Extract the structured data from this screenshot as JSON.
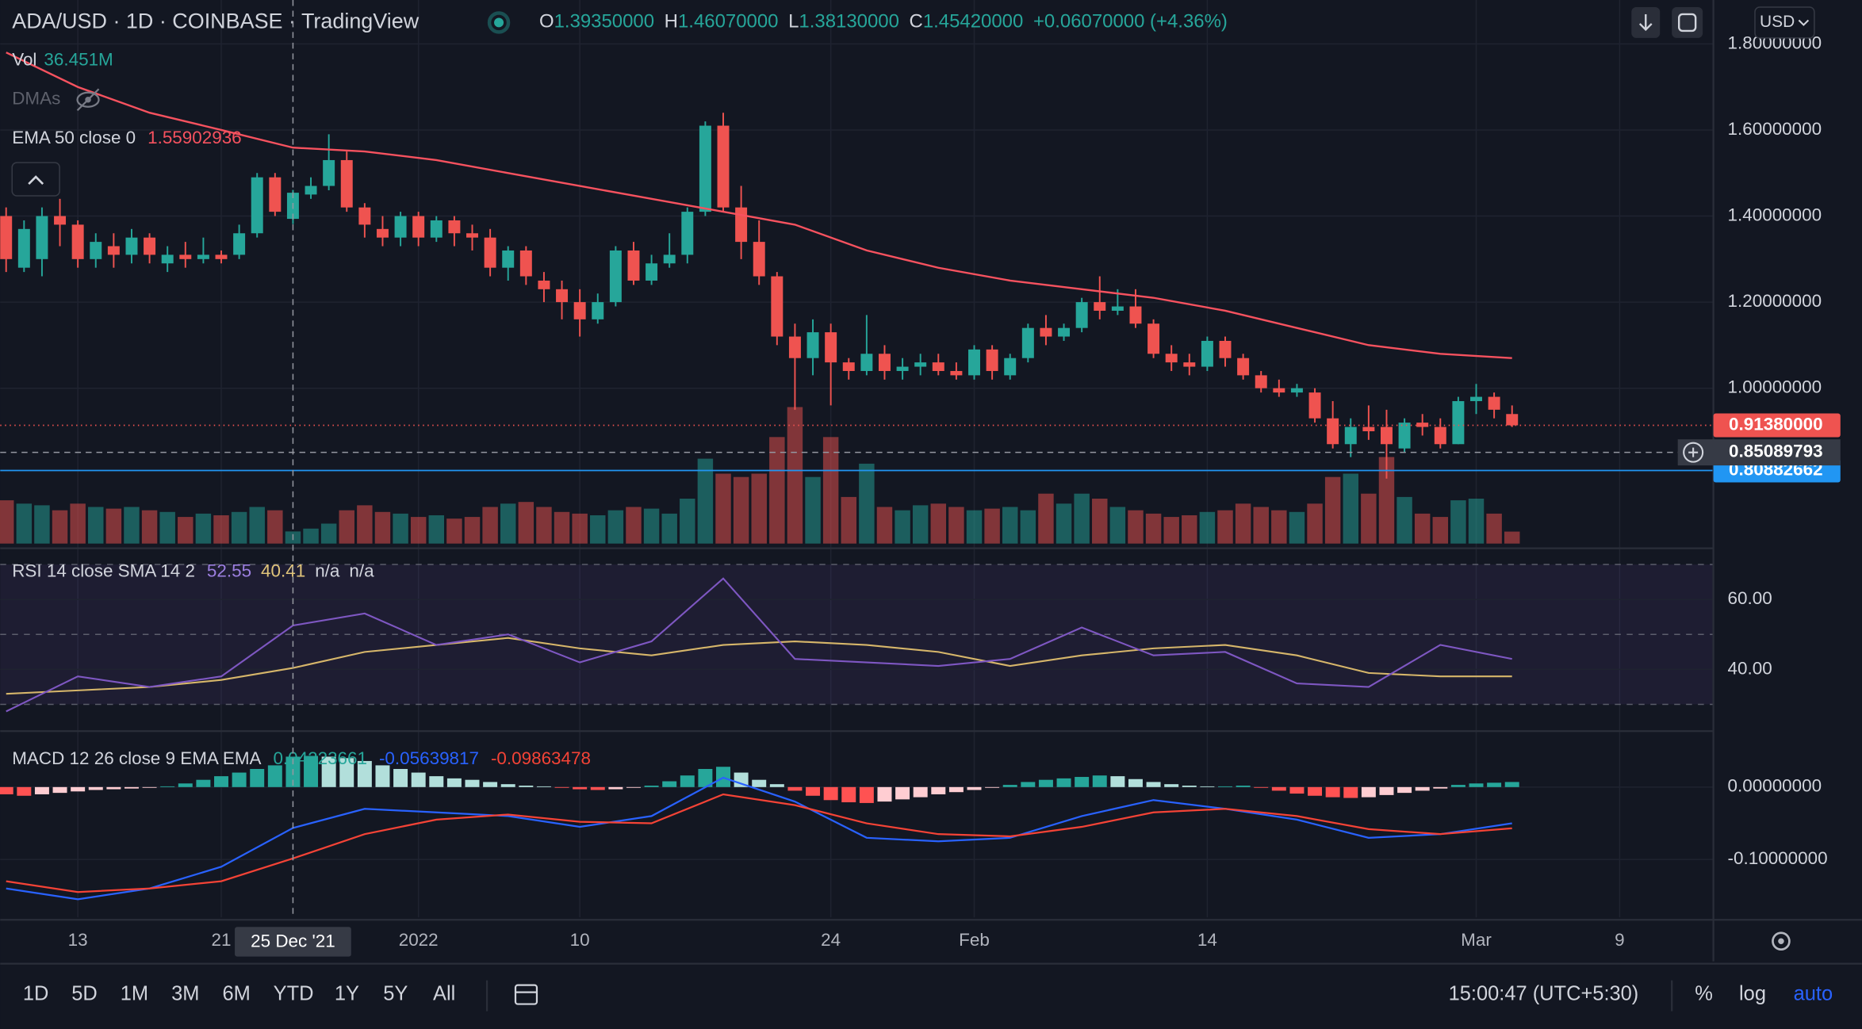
{
  "header": {
    "title": "ADA/USD · 1D · COINBASE · TradingView",
    "ohlc": [
      {
        "key": "O",
        "value": "1.39350000"
      },
      {
        "key": "H",
        "value": "1.46070000"
      },
      {
        "key": "L",
        "value": "1.38130000"
      },
      {
        "key": "C",
        "value": "1.45420000"
      }
    ],
    "change": "+0.06070000 (+4.36%)",
    "currency": "USD"
  },
  "chart_data": [
    {
      "type": "candlestick",
      "up_color": "#26a69a",
      "down_color": "#ef5350",
      "open": [
        1.4,
        1.28,
        1.3,
        1.4,
        1.38,
        1.3,
        1.33,
        1.31,
        1.35,
        1.29,
        1.31,
        1.3,
        1.31,
        1.31,
        1.36,
        1.49,
        1.3935,
        1.45,
        1.47,
        1.53,
        1.42,
        1.37,
        1.35,
        1.4,
        1.35,
        1.39,
        1.36,
        1.35,
        1.28,
        1.32,
        1.25,
        1.23,
        1.2,
        1.16,
        1.2,
        1.32,
        1.25,
        1.29,
        1.31,
        1.41,
        1.61,
        1.42,
        1.34,
        1.26,
        1.12,
        1.07,
        1.13,
        1.06,
        1.04,
        1.08,
        1.04,
        1.05,
        1.06,
        1.04,
        1.03,
        1.09,
        1.03,
        1.07,
        1.14,
        1.12,
        1.14,
        1.2,
        1.18,
        1.19,
        1.15,
        1.08,
        1.06,
        1.05,
        1.11,
        1.07,
        1.03,
        1.0,
        0.99,
        0.99,
        0.93,
        0.87,
        0.91,
        0.91,
        0.86,
        0.92,
        0.91,
        0.87,
        0.97,
        0.98,
        0.94
      ],
      "high": [
        1.42,
        1.39,
        1.42,
        1.44,
        1.39,
        1.36,
        1.36,
        1.37,
        1.36,
        1.33,
        1.34,
        1.35,
        1.32,
        1.38,
        1.5,
        1.5,
        1.4607,
        1.49,
        1.59,
        1.55,
        1.43,
        1.4,
        1.41,
        1.41,
        1.4,
        1.4,
        1.38,
        1.37,
        1.33,
        1.33,
        1.27,
        1.25,
        1.23,
        1.22,
        1.33,
        1.34,
        1.31,
        1.36,
        1.42,
        1.62,
        1.64,
        1.47,
        1.39,
        1.27,
        1.15,
        1.16,
        1.15,
        1.07,
        1.17,
        1.1,
        1.07,
        1.08,
        1.08,
        1.06,
        1.1,
        1.1,
        1.08,
        1.15,
        1.17,
        1.15,
        1.21,
        1.26,
        1.23,
        1.23,
        1.16,
        1.1,
        1.08,
        1.12,
        1.12,
        1.08,
        1.04,
        1.02,
        1.01,
        1.0,
        0.97,
        0.93,
        0.96,
        0.95,
        0.93,
        0.94,
        0.93,
        0.98,
        1.01,
        0.99,
        0.96
      ],
      "low": [
        1.27,
        1.27,
        1.26,
        1.33,
        1.28,
        1.28,
        1.28,
        1.29,
        1.29,
        1.27,
        1.28,
        1.29,
        1.29,
        1.3,
        1.35,
        1.4,
        1.3813,
        1.44,
        1.46,
        1.41,
        1.35,
        1.33,
        1.33,
        1.33,
        1.34,
        1.33,
        1.32,
        1.26,
        1.25,
        1.24,
        1.2,
        1.16,
        1.12,
        1.15,
        1.19,
        1.24,
        1.24,
        1.28,
        1.29,
        1.4,
        1.41,
        1.3,
        1.24,
        1.1,
        0.95,
        1.03,
        0.96,
        1.02,
        1.03,
        1.02,
        1.02,
        1.03,
        1.03,
        1.02,
        1.02,
        1.02,
        1.02,
        1.06,
        1.1,
        1.11,
        1.13,
        1.16,
        1.17,
        1.14,
        1.07,
        1.04,
        1.03,
        1.04,
        1.05,
        1.02,
        0.99,
        0.98,
        0.98,
        0.92,
        0.86,
        0.84,
        0.88,
        0.79,
        0.85,
        0.89,
        0.86,
        0.87,
        0.94,
        0.93,
        0.91
      ],
      "close": [
        1.3,
        1.37,
        1.4,
        1.38,
        1.3,
        1.34,
        1.31,
        1.35,
        1.31,
        1.31,
        1.3,
        1.31,
        1.3,
        1.36,
        1.49,
        1.41,
        1.4542,
        1.47,
        1.53,
        1.42,
        1.38,
        1.35,
        1.4,
        1.35,
        1.39,
        1.36,
        1.35,
        1.28,
        1.32,
        1.26,
        1.23,
        1.2,
        1.16,
        1.2,
        1.32,
        1.25,
        1.29,
        1.31,
        1.41,
        1.61,
        1.42,
        1.34,
        1.26,
        1.12,
        1.07,
        1.13,
        1.06,
        1.04,
        1.08,
        1.04,
        1.05,
        1.06,
        1.04,
        1.03,
        1.09,
        1.04,
        1.07,
        1.14,
        1.12,
        1.14,
        1.2,
        1.18,
        1.19,
        1.15,
        1.08,
        1.06,
        1.05,
        1.11,
        1.07,
        1.03,
        1.0,
        0.99,
        1.0,
        0.93,
        0.87,
        0.91,
        0.9,
        0.87,
        0.92,
        0.91,
        0.87,
        0.97,
        0.98,
        0.95,
        0.9138
      ],
      "volume": {
        "name": "Vol",
        "value_label": "36.451M",
        "values": [
          130,
          120,
          115,
          100,
          120,
          110,
          105,
          110,
          100,
          95,
          80,
          90,
          85,
          95,
          110,
          100,
          36.451,
          45,
          60,
          100,
          115,
          95,
          90,
          80,
          85,
          75,
          80,
          110,
          120,
          125,
          110,
          95,
          90,
          85,
          100,
          110,
          105,
          90,
          135,
          255,
          210,
          200,
          210,
          320,
          410,
          200,
          320,
          140,
          240,
          110,
          100,
          115,
          120,
          110,
          100,
          105,
          110,
          100,
          150,
          120,
          150,
          135,
          110,
          100,
          90,
          80,
          85,
          95,
          100,
          120,
          110,
          100,
          95,
          120,
          200,
          210,
          150,
          260,
          140,
          90,
          80,
          130,
          135,
          90,
          36
        ]
      },
      "dmas": "DMAs",
      "overlays": [
        {
          "name": "EMA 50 close 0",
          "value_label": "1.55902936",
          "color": "#f7525f",
          "x": [
            0,
            4,
            8,
            12,
            16,
            20,
            24,
            28,
            32,
            36,
            40,
            44,
            48,
            52,
            56,
            60,
            64,
            68,
            72,
            76,
            80,
            84
          ],
          "values": [
            1.78,
            1.7,
            1.64,
            1.6,
            1.559,
            1.55,
            1.53,
            1.5,
            1.47,
            1.44,
            1.41,
            1.38,
            1.32,
            1.28,
            1.25,
            1.23,
            1.21,
            1.18,
            1.14,
            1.1,
            1.08,
            1.07
          ]
        }
      ],
      "ylim": [
        0.639,
        1.902
      ],
      "yticks": [
        {
          "value": 1.8,
          "label": "1.80000000"
        },
        {
          "value": 1.6,
          "label": "1.60000000"
        },
        {
          "value": 1.4,
          "label": "1.40000000"
        },
        {
          "value": 1.2,
          "label": "1.20000000"
        },
        {
          "value": 1.0,
          "label": "1.00000000"
        }
      ],
      "xlim": [
        -0.33,
        95.23
      ],
      "xticks": [
        {
          "value": 4,
          "label": "13"
        },
        {
          "value": 12,
          "label": "21"
        },
        {
          "value": 23,
          "label": "2022"
        },
        {
          "value": 32,
          "label": "10"
        },
        {
          "value": 46,
          "label": "24"
        },
        {
          "value": 54,
          "label": "Feb"
        },
        {
          "value": 67,
          "label": "14"
        },
        {
          "value": 82,
          "label": "Mar"
        },
        {
          "value": 90,
          "label": "9"
        }
      ],
      "price_lines": [
        {
          "value": 0.80882662,
          "label": "0.80882662",
          "color": "#2196f3",
          "style": "solid"
        },
        {
          "value": 0.9138,
          "label": "0.91380000",
          "color": "#ef5350",
          "style": "dotted"
        }
      ],
      "crosshair": {
        "x": 16,
        "x_label": "25 Dec '21",
        "y": 0.85089793,
        "y_label": "0.85089793"
      }
    },
    {
      "type": "line",
      "title": "RSI 14 close SMA 14 2",
      "extra_labels": [
        "n/a",
        "n/a"
      ],
      "series": [
        {
          "value_label": "52.55",
          "color": "#7e57c2",
          "x": [
            0,
            4,
            8,
            12,
            16,
            20,
            24,
            28,
            32,
            36,
            40,
            44,
            48,
            52,
            56,
            60,
            64,
            68,
            72,
            76,
            80,
            84
          ],
          "values": [
            28,
            38,
            35,
            38,
            52.55,
            56,
            47,
            50,
            42,
            48,
            66,
            43,
            42,
            41,
            43,
            52,
            44,
            45,
            36,
            35,
            47,
            43
          ]
        },
        {
          "value_label": "40.41",
          "color": "#d6b66a",
          "x": [
            0,
            4,
            8,
            12,
            16,
            20,
            24,
            28,
            32,
            36,
            40,
            44,
            48,
            52,
            56,
            60,
            64,
            68,
            72,
            76,
            80,
            84
          ],
          "values": [
            33,
            34,
            35,
            37,
            40.41,
            45,
            47,
            49,
            46,
            44,
            47,
            48,
            47,
            45,
            41,
            44,
            46,
            47,
            44,
            39,
            38,
            38
          ]
        }
      ],
      "bands": [
        70,
        50,
        30
      ],
      "band_fill": "rgba(126,87,194,0.1)",
      "ylim": [
        22.7,
        73.6
      ],
      "yticks": [
        {
          "value": 60,
          "label": "60.00"
        },
        {
          "value": 40,
          "label": "40.00"
        }
      ]
    },
    {
      "type": "macd",
      "title": "MACD 12 26 close 9 EMA EMA",
      "histogram": {
        "value_label": "0.04223661",
        "colors": [
          "#26a69a",
          "#b2dfdb",
          "#ffcdd2",
          "#ff5252"
        ],
        "values": [
          -0.01,
          -0.012,
          -0.01,
          -0.008,
          -0.006,
          -0.004,
          -0.003,
          -0.002,
          -0.001,
          0.001,
          0.005,
          0.01,
          0.015,
          0.02,
          0.025,
          0.03,
          0.042,
          0.043,
          0.042,
          0.04,
          0.036,
          0.03,
          0.025,
          0.02,
          0.015,
          0.012,
          0.01,
          0.007,
          0.004,
          0.002,
          0.001,
          -0.001,
          -0.003,
          -0.004,
          -0.003,
          -0.001,
          0.002,
          0.008,
          0.016,
          0.025,
          0.028,
          0.02,
          0.01,
          0.004,
          -0.005,
          -0.012,
          -0.018,
          -0.021,
          -0.022,
          -0.02,
          -0.017,
          -0.014,
          -0.01,
          -0.007,
          -0.004,
          -0.001,
          0.003,
          0.007,
          0.01,
          0.012,
          0.014,
          0.016,
          0.015,
          0.011,
          0.007,
          0.004,
          0.002,
          0.001,
          0.001,
          0.002,
          -0.001,
          -0.005,
          -0.009,
          -0.012,
          -0.014,
          -0.015,
          -0.014,
          -0.011,
          -0.008,
          -0.005,
          -0.002,
          0.003,
          0.005,
          0.006,
          0.007
        ]
      },
      "series": [
        {
          "value_label": "-0.05639817",
          "color": "#2962ff",
          "x": [
            0,
            4,
            8,
            12,
            16,
            20,
            24,
            28,
            32,
            36,
            40,
            44,
            48,
            52,
            56,
            60,
            64,
            68,
            72,
            76,
            80,
            84
          ],
          "values": [
            -0.14,
            -0.155,
            -0.14,
            -0.11,
            -0.0564,
            -0.03,
            -0.035,
            -0.04,
            -0.055,
            -0.04,
            0.013,
            -0.02,
            -0.07,
            -0.075,
            -0.07,
            -0.04,
            -0.018,
            -0.03,
            -0.045,
            -0.07,
            -0.065,
            -0.05
          ]
        },
        {
          "value_label": "-0.09863478",
          "color": "#f44336",
          "x": [
            0,
            4,
            8,
            12,
            16,
            20,
            24,
            28,
            32,
            36,
            40,
            44,
            48,
            52,
            56,
            60,
            64,
            68,
            72,
            76,
            80,
            84
          ],
          "values": [
            -0.13,
            -0.145,
            -0.14,
            -0.13,
            -0.0986,
            -0.065,
            -0.045,
            -0.038,
            -0.048,
            -0.05,
            -0.01,
            -0.025,
            -0.05,
            -0.065,
            -0.068,
            -0.055,
            -0.035,
            -0.03,
            -0.04,
            -0.058,
            -0.065,
            -0.057
          ]
        }
      ],
      "ylim": [
        -0.18,
        0.074
      ],
      "yticks": [
        {
          "value": 0,
          "label": "0.00000000"
        },
        {
          "value": -0.1,
          "label": "-0.10000000"
        }
      ]
    }
  ],
  "toolbar": {
    "ranges": [
      "1D",
      "5D",
      "1M",
      "3M",
      "6M",
      "YTD",
      "1Y",
      "5Y",
      "All"
    ],
    "time": "15:00:47 (UTC+5:30)",
    "scale_modes": [
      "%",
      "log",
      "auto"
    ]
  }
}
